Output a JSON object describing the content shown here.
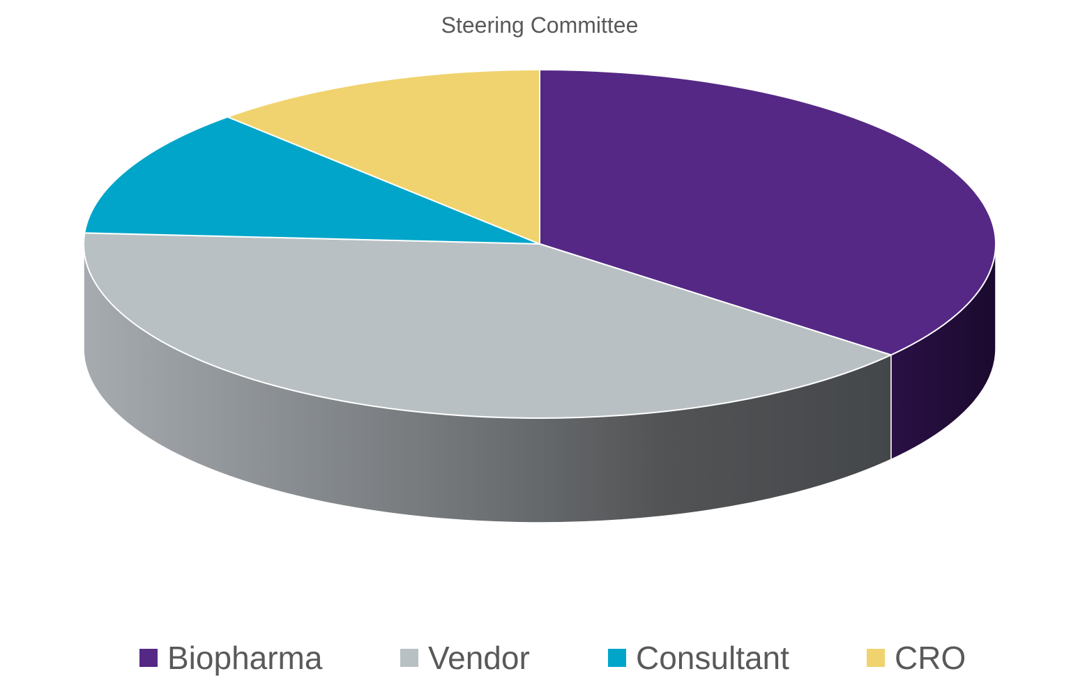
{
  "chart_data": {
    "type": "pie",
    "title": "Steering Committee",
    "categories": [
      "Biopharma",
      "Vendor",
      "Consultant",
      "CRO"
    ],
    "values": [
      36,
      40,
      12,
      12
    ],
    "unit": "",
    "colors": [
      "#552885",
      "#B9C0C3",
      "#00A5C9",
      "#F0D36E"
    ],
    "legend_position": "bottom",
    "three_d": true,
    "start_angle_deg": 0,
    "direction": "clockwise"
  }
}
